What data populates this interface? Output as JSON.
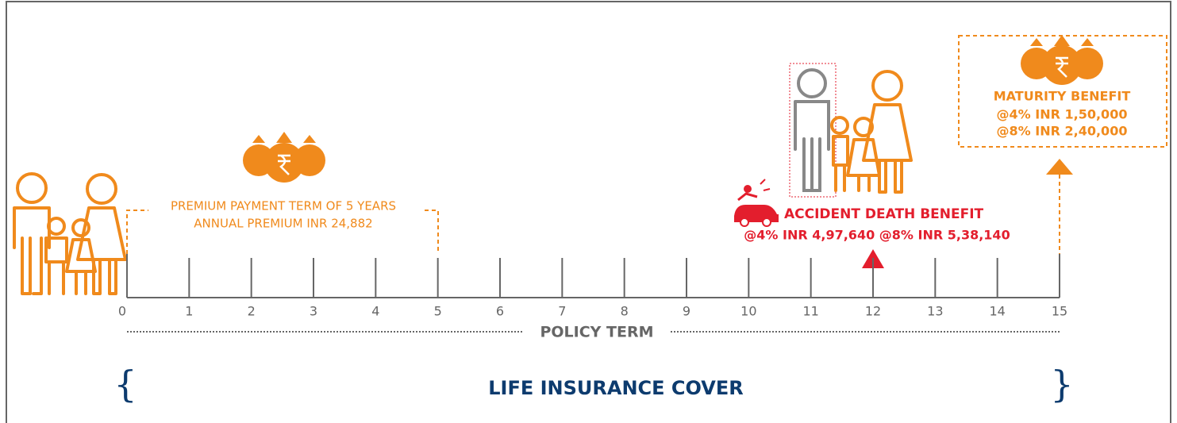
{
  "premium": {
    "line1": "PREMIUM PAYMENT TERM OF 5 YEARS",
    "line2": "ANNUAL PREMIUM INR 24,882"
  },
  "accident": {
    "title": "ACCIDENT DEATH BENEFIT",
    "amounts": "@4% INR 4,97,640 @8% INR 5,38,140"
  },
  "maturity": {
    "title": "MATURITY BENEFIT",
    "line1": "@4% INR 1,50,000",
    "line2": "@8% INR 2,40,000"
  },
  "timeline": {
    "ticks": [
      0,
      1,
      2,
      3,
      4,
      5,
      6,
      7,
      8,
      9,
      10,
      11,
      12,
      13,
      14,
      15
    ],
    "label": "POLICY TERM"
  },
  "cover": {
    "label": "LIFE INSURANCE COVER"
  }
}
